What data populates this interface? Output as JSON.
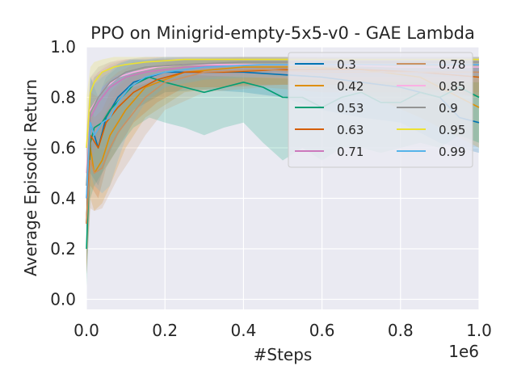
{
  "chart_data": {
    "type": "line",
    "title": "PPO on Minigrid-empty-5x5-v0 - GAE Lambda",
    "xlabel": "#Steps",
    "ylabel": "Average Episodic Return",
    "x_offset_label": "1e6",
    "xlim": [
      0,
      1.0
    ],
    "ylim": [
      -0.04,
      1.0
    ],
    "x_ticks": [
      0.0,
      0.2,
      0.4,
      0.6,
      0.8,
      1.0
    ],
    "x_tick_labels": [
      "0.0",
      "0.2",
      "0.4",
      "0.6",
      "0.8",
      "1.0"
    ],
    "y_ticks": [
      0.0,
      0.2,
      0.4,
      0.6,
      0.8,
      1.0
    ],
    "y_tick_labels": [
      "0.0",
      "0.2",
      "0.4",
      "0.6",
      "0.8",
      "1.0"
    ],
    "grid": true,
    "legend_position": "top-right",
    "legend_columns": 2,
    "series": [
      {
        "name": "0.3",
        "color": "#0173b2",
        "x": [
          0,
          0.01,
          0.03,
          0.05,
          0.08,
          0.12,
          0.2,
          0.3,
          0.4,
          0.5,
          0.6,
          0.7,
          0.8,
          0.9,
          0.95,
          1.0
        ],
        "y": [
          0.3,
          0.7,
          0.6,
          0.72,
          0.8,
          0.86,
          0.9,
          0.9,
          0.9,
          0.89,
          0.88,
          0.86,
          0.84,
          0.8,
          0.72,
          0.7
        ],
        "lo": [
          0.1,
          0.5,
          0.45,
          0.55,
          0.65,
          0.75,
          0.82,
          0.83,
          0.82,
          0.8,
          0.75,
          0.72,
          0.7,
          0.62,
          0.6,
          0.58
        ],
        "hi": [
          0.5,
          0.88,
          0.8,
          0.88,
          0.92,
          0.94,
          0.95,
          0.95,
          0.95,
          0.95,
          0.95,
          0.94,
          0.94,
          0.93,
          0.92,
          0.92
        ]
      },
      {
        "name": "0.42",
        "color": "#de8f05",
        "x": [
          0,
          0.01,
          0.02,
          0.04,
          0.06,
          0.1,
          0.15,
          0.25,
          0.4,
          0.55,
          0.7,
          0.85,
          1.0
        ],
        "y": [
          0.3,
          0.6,
          0.5,
          0.55,
          0.65,
          0.75,
          0.84,
          0.9,
          0.92,
          0.92,
          0.91,
          0.88,
          0.76
        ],
        "lo": [
          0.1,
          0.4,
          0.35,
          0.38,
          0.45,
          0.6,
          0.72,
          0.82,
          0.85,
          0.85,
          0.82,
          0.72,
          0.6
        ],
        "hi": [
          0.5,
          0.8,
          0.72,
          0.75,
          0.82,
          0.88,
          0.92,
          0.95,
          0.96,
          0.96,
          0.95,
          0.94,
          0.9
        ]
      },
      {
        "name": "0.53",
        "color": "#029e73",
        "x": [
          0,
          0.01,
          0.02,
          0.04,
          0.06,
          0.09,
          0.12,
          0.16,
          0.2,
          0.25,
          0.3,
          0.35,
          0.4,
          0.45,
          0.5,
          0.55,
          0.6,
          0.65,
          0.7,
          0.75,
          0.8,
          0.85,
          0.9,
          0.95,
          1.0
        ],
        "y": [
          0.2,
          0.62,
          0.68,
          0.7,
          0.75,
          0.8,
          0.85,
          0.88,
          0.86,
          0.84,
          0.82,
          0.84,
          0.86,
          0.84,
          0.8,
          0.8,
          0.76,
          0.8,
          0.82,
          0.78,
          0.78,
          0.82,
          0.8,
          0.84,
          0.8
        ],
        "lo": [
          0.05,
          0.4,
          0.45,
          0.5,
          0.55,
          0.62,
          0.68,
          0.72,
          0.7,
          0.68,
          0.65,
          0.68,
          0.7,
          0.62,
          0.55,
          0.6,
          0.55,
          0.6,
          0.6,
          0.58,
          0.6,
          0.62,
          0.6,
          0.65,
          0.62
        ],
        "hi": [
          0.4,
          0.82,
          0.88,
          0.9,
          0.92,
          0.94,
          0.95,
          0.95,
          0.95,
          0.95,
          0.95,
          0.95,
          0.95,
          0.95,
          0.95,
          0.95,
          0.95,
          0.95,
          0.95,
          0.95,
          0.95,
          0.95,
          0.95,
          0.95,
          0.95
        ]
      },
      {
        "name": "0.63",
        "color": "#d55e00",
        "x": [
          0,
          0.01,
          0.03,
          0.05,
          0.08,
          0.12,
          0.18,
          0.25,
          0.35,
          0.5,
          0.7,
          0.85,
          1.0
        ],
        "y": [
          0.3,
          0.65,
          0.6,
          0.7,
          0.76,
          0.82,
          0.87,
          0.9,
          0.9,
          0.91,
          0.91,
          0.9,
          0.88
        ],
        "lo": [
          0.1,
          0.45,
          0.4,
          0.52,
          0.6,
          0.7,
          0.78,
          0.84,
          0.84,
          0.85,
          0.85,
          0.84,
          0.8
        ],
        "hi": [
          0.5,
          0.82,
          0.8,
          0.86,
          0.9,
          0.93,
          0.95,
          0.95,
          0.95,
          0.95,
          0.95,
          0.95,
          0.95
        ]
      },
      {
        "name": "0.71",
        "color": "#cc78bc",
        "x": [
          0,
          0.01,
          0.03,
          0.06,
          0.1,
          0.15,
          0.25,
          0.4,
          0.6,
          0.8,
          1.0
        ],
        "y": [
          0.4,
          0.72,
          0.78,
          0.84,
          0.88,
          0.9,
          0.92,
          0.93,
          0.93,
          0.93,
          0.93
        ],
        "lo": [
          0.2,
          0.55,
          0.62,
          0.72,
          0.8,
          0.84,
          0.87,
          0.89,
          0.89,
          0.89,
          0.89
        ],
        "hi": [
          0.6,
          0.86,
          0.9,
          0.93,
          0.95,
          0.95,
          0.96,
          0.96,
          0.96,
          0.96,
          0.96
        ]
      },
      {
        "name": "0.78",
        "color": "#ca9161",
        "x": [
          0,
          0.01,
          0.02,
          0.04,
          0.06,
          0.08,
          0.11,
          0.15,
          0.2,
          0.3,
          0.45,
          0.6,
          0.8,
          1.0
        ],
        "y": [
          0.3,
          0.55,
          0.5,
          0.52,
          0.6,
          0.66,
          0.72,
          0.8,
          0.86,
          0.9,
          0.91,
          0.9,
          0.9,
          0.9
        ],
        "lo": [
          0.1,
          0.36,
          0.35,
          0.36,
          0.42,
          0.48,
          0.55,
          0.65,
          0.75,
          0.82,
          0.84,
          0.82,
          0.82,
          0.82
        ],
        "hi": [
          0.5,
          0.75,
          0.7,
          0.72,
          0.78,
          0.84,
          0.88,
          0.92,
          0.94,
          0.95,
          0.95,
          0.95,
          0.95,
          0.95
        ]
      },
      {
        "name": "0.85",
        "color": "#fbafe4",
        "x": [
          0,
          0.01,
          0.03,
          0.05,
          0.08,
          0.12,
          0.18,
          0.25,
          0.4,
          0.6,
          0.8,
          1.0
        ],
        "y": [
          0.5,
          0.75,
          0.8,
          0.84,
          0.88,
          0.9,
          0.92,
          0.93,
          0.93,
          0.93,
          0.92,
          0.92
        ],
        "lo": [
          0.3,
          0.6,
          0.68,
          0.74,
          0.8,
          0.84,
          0.87,
          0.89,
          0.88,
          0.87,
          0.86,
          0.86
        ],
        "hi": [
          0.7,
          0.88,
          0.9,
          0.93,
          0.95,
          0.95,
          0.96,
          0.96,
          0.96,
          0.96,
          0.96,
          0.96
        ]
      },
      {
        "name": "0.9",
        "color": "#949494",
        "x": [
          0,
          0.01,
          0.03,
          0.06,
          0.1,
          0.15,
          0.25,
          0.4,
          0.6,
          0.8,
          1.0
        ],
        "y": [
          0.45,
          0.74,
          0.8,
          0.86,
          0.9,
          0.92,
          0.93,
          0.94,
          0.94,
          0.94,
          0.94
        ],
        "lo": [
          0.25,
          0.58,
          0.66,
          0.76,
          0.84,
          0.87,
          0.89,
          0.9,
          0.9,
          0.9,
          0.9
        ],
        "hi": [
          0.65,
          0.88,
          0.92,
          0.94,
          0.95,
          0.96,
          0.96,
          0.96,
          0.96,
          0.96,
          0.96
        ]
      },
      {
        "name": "0.95",
        "color": "#ece133",
        "x": [
          0,
          0.01,
          0.02,
          0.04,
          0.07,
          0.1,
          0.15,
          0.25,
          0.4,
          0.6,
          0.8,
          1.0
        ],
        "y": [
          0.6,
          0.82,
          0.86,
          0.9,
          0.92,
          0.93,
          0.94,
          0.95,
          0.95,
          0.95,
          0.95,
          0.95
        ],
        "lo": [
          0.4,
          0.7,
          0.76,
          0.84,
          0.88,
          0.9,
          0.91,
          0.92,
          0.92,
          0.92,
          0.92,
          0.92
        ],
        "hi": [
          0.8,
          0.92,
          0.94,
          0.95,
          0.96,
          0.96,
          0.96,
          0.96,
          0.96,
          0.96,
          0.96,
          0.96
        ]
      },
      {
        "name": "0.99",
        "color": "#56b4e9",
        "x": [
          0,
          0.01,
          0.02,
          0.04,
          0.06,
          0.08,
          0.11,
          0.15,
          0.2,
          0.3,
          0.45,
          0.6,
          0.8,
          1.0
        ],
        "y": [
          0.4,
          0.7,
          0.65,
          0.7,
          0.72,
          0.78,
          0.84,
          0.88,
          0.9,
          0.92,
          0.93,
          0.93,
          0.93,
          0.93
        ],
        "lo": [
          0.15,
          0.5,
          0.45,
          0.42,
          0.45,
          0.55,
          0.68,
          0.78,
          0.84,
          0.87,
          0.88,
          0.88,
          0.88,
          0.88
        ],
        "hi": [
          0.65,
          0.88,
          0.85,
          0.88,
          0.9,
          0.93,
          0.95,
          0.95,
          0.96,
          0.96,
          0.96,
          0.96,
          0.96,
          0.96
        ]
      }
    ]
  }
}
